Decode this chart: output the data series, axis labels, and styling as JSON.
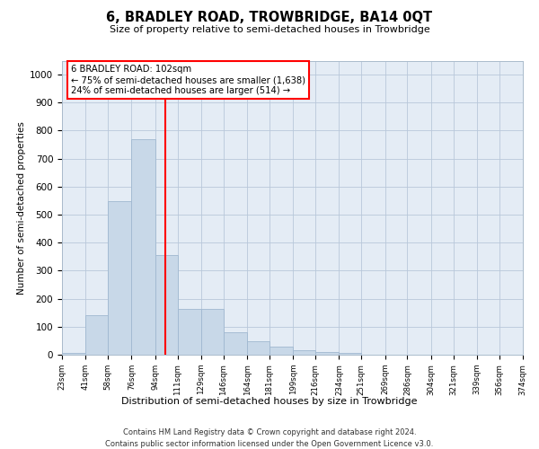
{
  "title": "6, BRADLEY ROAD, TROWBRIDGE, BA14 0QT",
  "subtitle": "Size of property relative to semi-detached houses in Trowbridge",
  "xlabel": "Distribution of semi-detached houses by size in Trowbridge",
  "ylabel": "Number of semi-detached properties",
  "bar_color": "#c8d8e8",
  "bar_edge_color": "#a0b8d0",
  "grid_color": "#b8c8da",
  "bg_color": "#e4ecf5",
  "red_line_x": 102,
  "annotation_text": "6 BRADLEY ROAD: 102sqm\n← 75% of semi-detached houses are smaller (1,638)\n24% of semi-detached houses are larger (514) →",
  "annotation_box_color": "white",
  "annotation_box_edge": "red",
  "footer_line1": "Contains HM Land Registry data © Crown copyright and database right 2024.",
  "footer_line2": "Contains public sector information licensed under the Open Government Licence v3.0.",
  "bin_edges": [
    23,
    41,
    58,
    76,
    94,
    111,
    129,
    146,
    164,
    181,
    199,
    216,
    234,
    251,
    269,
    286,
    304,
    321,
    339,
    356,
    374
  ],
  "bin_counts": [
    8,
    140,
    548,
    770,
    355,
    165,
    165,
    80,
    48,
    30,
    15,
    10,
    5,
    0,
    0,
    0,
    0,
    0,
    0,
    0
  ],
  "ylim": [
    0,
    1050
  ],
  "yticks": [
    0,
    100,
    200,
    300,
    400,
    500,
    600,
    700,
    800,
    900,
    1000
  ]
}
